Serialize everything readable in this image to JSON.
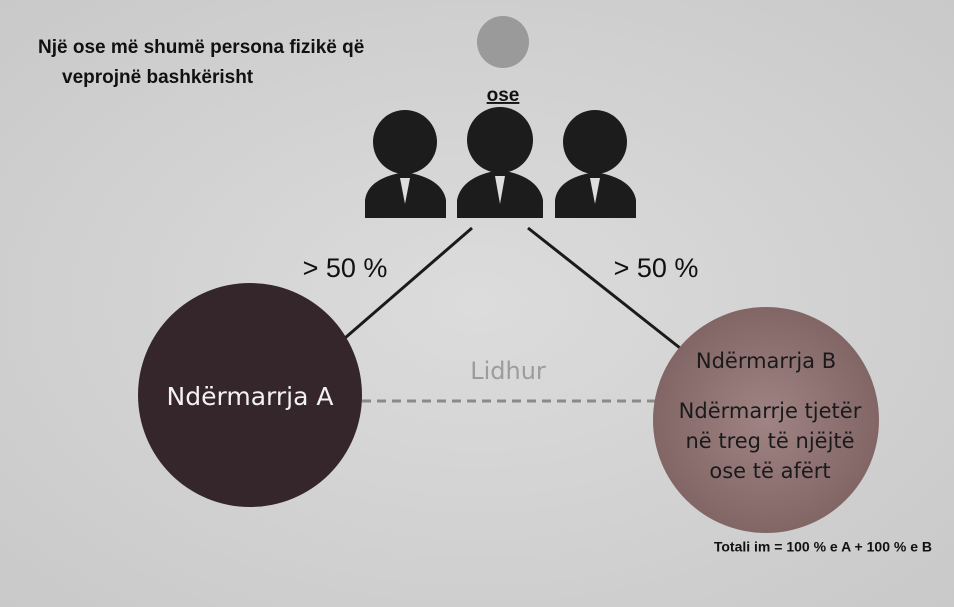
{
  "header": {
    "lines": [
      "Një ose më shumë persona fizikë që",
      "veprojnë bashkërisht"
    ]
  },
  "or_label": "ose",
  "left_share": "> 50 %",
  "right_share": "> 50 %",
  "node_a": {
    "label": "Ndërmarrja A"
  },
  "link_label": "Lidhur",
  "node_b": {
    "label": "Ndërmarrja B",
    "description": [
      "Ndërmarrje tjetër",
      "në treg të njëjtë",
      "ose të afërt"
    ]
  },
  "total": "Totali im = 100 % e A + 100 % e B"
}
